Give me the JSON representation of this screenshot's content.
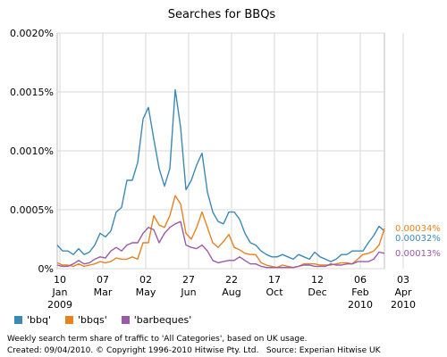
{
  "footer": {
    "note": "Weekly search term share of traffic to 'All Categories', based on UK usage.",
    "copyright": "Created: 09/04/2010. © Copyright 1996-2010 Hitwise Pty. Ltd.",
    "source": "Source: Experian Hitwise UK"
  },
  "chart_data": {
    "type": "line",
    "title": "Searches for BBQs",
    "ylim": [
      0,
      0.002
    ],
    "y_ticks": [
      "0.0020%",
      "0.0015%",
      "0.0010%",
      "0.0005%",
      "0%"
    ],
    "x_ticks": [
      {
        "day": "10",
        "month": "Jan",
        "year": "2009",
        "x": 0.5
      },
      {
        "day": "07",
        "month": "Mar",
        "year": "",
        "x": 8.5
      },
      {
        "day": "02",
        "month": "May",
        "year": "",
        "x": 16.5
      },
      {
        "day": "27",
        "month": "Jun",
        "year": "",
        "x": 24.5
      },
      {
        "day": "22",
        "month": "Aug",
        "year": "",
        "x": 32.5
      },
      {
        "day": "17",
        "month": "Oct",
        "year": "",
        "x": 40.5
      },
      {
        "day": "12",
        "month": "Dec",
        "year": "",
        "x": 48.5
      },
      {
        "day": "06",
        "month": "Feb",
        "year": "2010",
        "x": 56.5
      },
      {
        "day": "03",
        "month": "Apr",
        "year": "2010",
        "x": 64.5
      }
    ],
    "grid": true,
    "legend_position": "bottom-left",
    "series": [
      {
        "name": "'bbq'",
        "color": "#3a8ab5",
        "end_label": "0.00032%",
        "values": [
          0.0002,
          0.00015,
          0.00015,
          0.00012,
          0.00017,
          0.00012,
          0.00014,
          0.0002,
          0.0003,
          0.00027,
          0.00032,
          0.00048,
          0.00052,
          0.00075,
          0.00075,
          0.0009,
          0.00127,
          0.00137,
          0.0011,
          0.00085,
          0.0007,
          0.00085,
          0.00152,
          0.0012,
          0.00067,
          0.00075,
          0.00088,
          0.00098,
          0.00065,
          0.00048,
          0.0004,
          0.00038,
          0.00048,
          0.00048,
          0.00042,
          0.0003,
          0.00022,
          0.0002,
          0.00015,
          0.00012,
          0.0001,
          0.0001,
          0.00012,
          0.0001,
          8e-05,
          0.00012,
          0.0001,
          8e-05,
          0.00014,
          0.0001,
          8e-05,
          6e-05,
          8e-05,
          0.00012,
          0.00012,
          0.00015,
          0.00015,
          0.00015,
          0.00022,
          0.00028,
          0.00036,
          0.00032
        ]
      },
      {
        "name": "'bbqs'",
        "color": "#e8821e",
        "end_label": "0.00034%",
        "values": [
          5e-05,
          3e-05,
          3e-05,
          2e-05,
          4e-05,
          2e-05,
          3e-05,
          4e-05,
          6e-05,
          5e-05,
          6e-05,
          9e-05,
          8e-05,
          8e-05,
          0.0001,
          8e-05,
          0.00022,
          0.00022,
          0.00045,
          0.00037,
          0.00035,
          0.00045,
          0.00062,
          0.00055,
          0.0003,
          0.00025,
          0.00035,
          0.00048,
          0.00035,
          0.00022,
          0.00018,
          0.00023,
          0.00029,
          0.00018,
          0.00016,
          0.00013,
          0.00012,
          0.00012,
          5e-05,
          3e-05,
          2e-05,
          1e-05,
          3e-05,
          2e-05,
          1e-05,
          2e-05,
          4e-05,
          4e-05,
          4e-05,
          3e-05,
          3e-05,
          3e-05,
          4e-05,
          5e-05,
          5e-05,
          4e-05,
          8e-05,
          0.00012,
          0.00013,
          0.00015,
          0.0002,
          0.00034
        ]
      },
      {
        "name": "'barbeques'",
        "color": "#9a5aa8",
        "end_label": "0.00013%",
        "values": [
          3e-05,
          2e-05,
          2e-05,
          4e-05,
          7e-05,
          4e-05,
          5e-05,
          8e-05,
          0.0001,
          9e-05,
          0.00015,
          0.00018,
          0.00015,
          0.0002,
          0.00022,
          0.00022,
          0.0003,
          0.00035,
          0.00033,
          0.00022,
          0.0003,
          0.00035,
          0.00038,
          0.0004,
          0.0002,
          0.00018,
          0.00017,
          0.0002,
          0.00015,
          7e-05,
          5e-05,
          6e-05,
          7e-05,
          7e-05,
          0.0001,
          7e-05,
          4e-05,
          4e-05,
          2e-05,
          1e-05,
          1e-05,
          1e-05,
          1e-05,
          1e-05,
          1e-05,
          2e-05,
          3e-05,
          3e-05,
          2e-05,
          2e-05,
          2e-05,
          4e-05,
          3e-05,
          3e-05,
          4e-05,
          4e-05,
          6e-05,
          6e-05,
          6e-05,
          8e-05,
          0.00014,
          0.00013
        ]
      }
    ]
  }
}
